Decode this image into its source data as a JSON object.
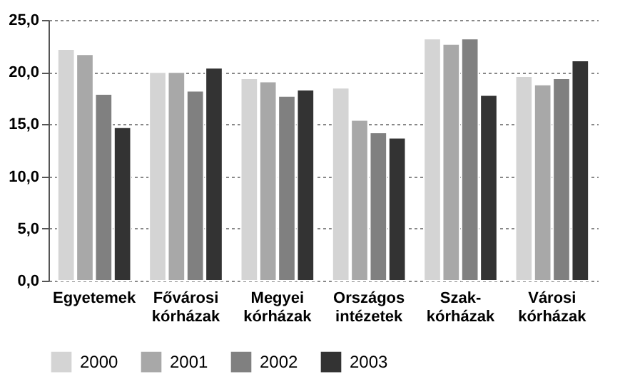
{
  "chart_data": {
    "type": "bar",
    "categories": [
      "Egyetemek",
      "Fővárosi kórházak",
      "Megyei kórházak",
      "Országos intézetek",
      "Szak-kórházak",
      "Városi kórházak"
    ],
    "series": [
      {
        "name": "2000",
        "color": "#d4d4d4",
        "values": [
          22.2,
          20.0,
          19.4,
          18.5,
          23.2,
          19.6
        ]
      },
      {
        "name": "2001",
        "color": "#a8a8a8",
        "values": [
          21.7,
          20.0,
          19.1,
          15.4,
          22.7,
          18.8
        ]
      },
      {
        "name": "2002",
        "color": "#808080",
        "values": [
          17.9,
          18.2,
          17.7,
          14.2,
          23.2,
          19.4
        ]
      },
      {
        "name": "2003",
        "color": "#333333",
        "values": [
          14.7,
          20.4,
          18.3,
          13.7,
          17.8,
          21.1
        ]
      }
    ],
    "ylim": [
      0,
      25
    ],
    "yticks": [
      {
        "value": 0,
        "label": "0,0"
      },
      {
        "value": 5,
        "label": "5,0"
      },
      {
        "value": 10,
        "label": "10,0"
      },
      {
        "value": 15,
        "label": "15,0"
      },
      {
        "value": 20,
        "label": "20,0"
      },
      {
        "value": 25,
        "label": "25,0"
      }
    ],
    "grid": "y",
    "legend": "bottom"
  }
}
